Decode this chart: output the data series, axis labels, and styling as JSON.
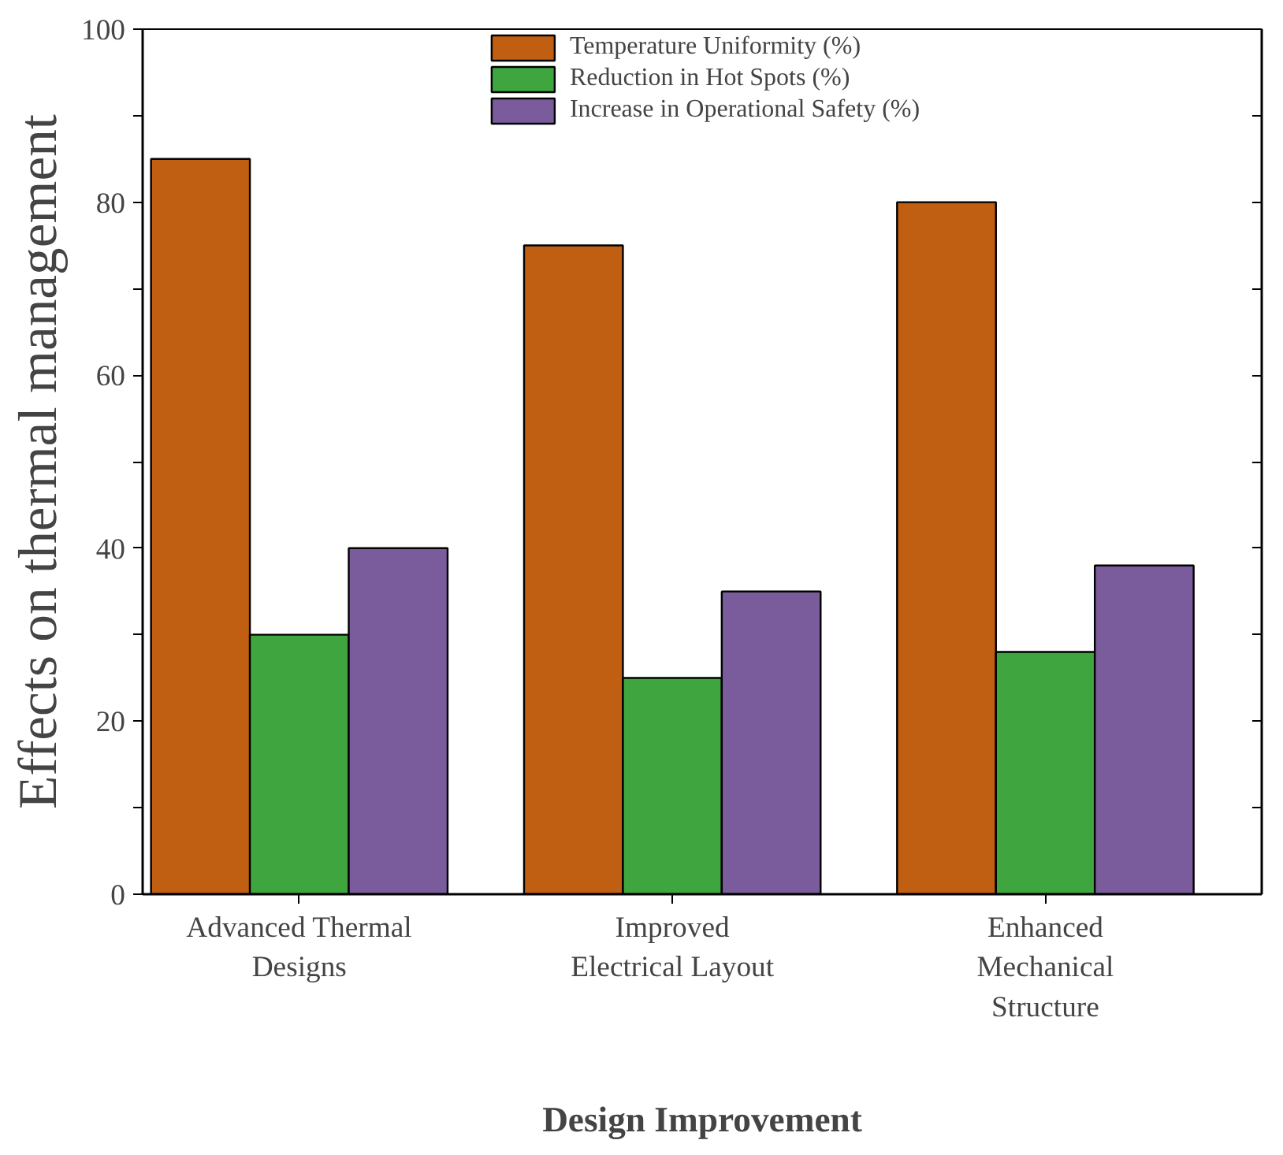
{
  "chart_data": {
    "type": "bar",
    "xlabel": "Design Improvement",
    "ylabel": "Effects on thermal management",
    "categories": [
      "Advanced Thermal Designs",
      "Improved Electrical Layout",
      "Enhanced Mechanical Structure"
    ],
    "series": [
      {
        "name": "Temperature Uniformity (%)",
        "color": "#c05f12",
        "values": [
          85,
          75,
          80
        ]
      },
      {
        "name": "Reduction in Hot Spots (%)",
        "color": "#3fa53f",
        "values": [
          30,
          25,
          28
        ]
      },
      {
        "name": "Increase in Operational Safety (%)",
        "color": "#7a5c9c",
        "values": [
          40,
          35,
          38
        ]
      }
    ],
    "ylim": [
      0,
      100
    ],
    "yticks": [
      0,
      {
        "value": 10,
        "label": null
      },
      20,
      {
        "value": 30,
        "label": null
      },
      40,
      {
        "value": 50,
        "label": null
      },
      60,
      {
        "value": 70,
        "label": null
      },
      80,
      {
        "value": 90,
        "label": null
      },
      100
    ],
    "grid": false,
    "legend": "top"
  }
}
